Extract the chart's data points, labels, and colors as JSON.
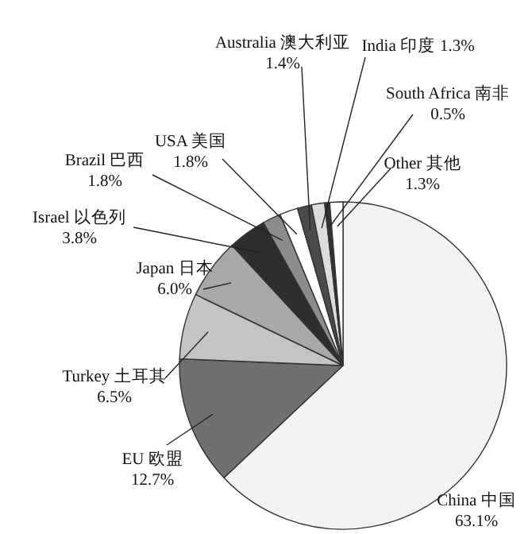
{
  "chart_data": {
    "type": "pie",
    "categories": [
      "China 中国",
      "EU 欧盟",
      "Turkey 土耳其",
      "Japan 日本",
      "Israel 以色列",
      "Brazil 巴西",
      "USA 美国",
      "Australia 澳大利亚",
      "India 印度",
      "South Africa 南非",
      "Other 其他"
    ],
    "values": [
      63.1,
      12.7,
      6.5,
      6.0,
      3.8,
      1.8,
      1.8,
      1.4,
      1.3,
      0.5,
      1.3
    ],
    "value_labels": [
      "63.1%",
      "12.7%",
      "6.5%",
      "6.0%",
      "3.8%",
      "1.8%",
      "1.8%",
      "1.4%",
      "1.3%",
      "0.5%",
      "1.3%"
    ],
    "colors": [
      "#f2f2f2",
      "#707070",
      "#c4c4c4",
      "#a8a8a8",
      "#2e2e2e",
      "#8c8c8c",
      "#ffffff",
      "#4a4a4a",
      "#dcdcdc",
      "#333333",
      "#ffffff"
    ]
  }
}
